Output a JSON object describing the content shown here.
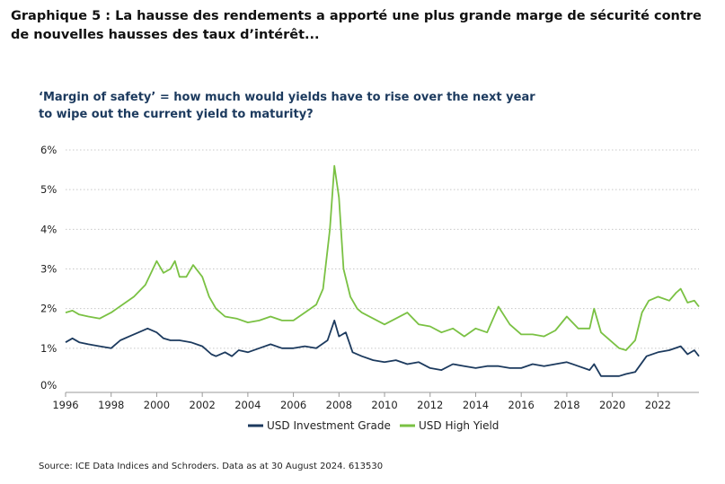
{
  "heading": "Graphique 5 : La hausse des rendements a apporté une plus grande marge de sécurité contre de nouvelles hausses des taux d’intérêt...",
  "source": "Source: ICE Data Indices and Schroders. Data as at 30 August 2024. 613530",
  "chart_data": {
    "type": "line",
    "title": "‘Margin of safety’ = how much would yields have to rise over the next year to wipe out the current yield to maturity?",
    "title_lines": [
      "‘Margin of safety’ = how much would yields have to rise over the next year",
      "to wipe out the current yield to maturity?"
    ],
    "xlabel": "",
    "ylabel": "",
    "xlim": [
      1996,
      2023.8
    ],
    "ylim": [
      0,
      6
    ],
    "x_ticks": [
      1996,
      1998,
      2000,
      2002,
      2004,
      2006,
      2008,
      2010,
      2012,
      2014,
      2016,
      2018,
      2020,
      2022
    ],
    "x_tick_labels": [
      "1996",
      "1998",
      "2000",
      "2002",
      "2004",
      "2006",
      "2008",
      "2010",
      "2012",
      "2014",
      "2016",
      "2018",
      "2020",
      "2022"
    ],
    "y_ticks": [
      0,
      1,
      2,
      3,
      4,
      5,
      6
    ],
    "y_tick_labels": [
      "0%",
      "1%",
      "2%",
      "3%",
      "4%",
      "5%",
      "6%"
    ],
    "grid": "horizontal dotted",
    "legend_position": "bottom-center",
    "series": [
      {
        "name": "USD Investment Grade",
        "color": "#1c3a5e",
        "x": [
          1996,
          1996.3,
          1996.6,
          1997,
          1997.5,
          1998,
          1998.4,
          1998.8,
          1999.2,
          1999.6,
          2000,
          2000.3,
          2000.6,
          2001,
          2001.5,
          2002,
          2002.4,
          2002.6,
          2003,
          2003.3,
          2003.6,
          2004,
          2004.5,
          2005,
          2005.5,
          2006,
          2006.5,
          2007,
          2007.5,
          2007.8,
          2008,
          2008.3,
          2008.6,
          2009,
          2009.5,
          2010,
          2010.5,
          2011,
          2011.5,
          2012,
          2012.5,
          2013,
          2013.5,
          2014,
          2014.5,
          2015,
          2015.5,
          2016,
          2016.5,
          2017,
          2017.5,
          2018,
          2018.5,
          2019,
          2019.2,
          2019.5,
          2020,
          2020.3,
          2020.6,
          2021,
          2021.5,
          2022,
          2022.5,
          2023,
          2023.3,
          2023.6,
          2023.8
        ],
        "values": [
          1.15,
          1.25,
          1.15,
          1.1,
          1.05,
          1.0,
          1.2,
          1.3,
          1.4,
          1.5,
          1.4,
          1.25,
          1.2,
          1.2,
          1.15,
          1.05,
          0.85,
          0.8,
          0.9,
          0.8,
          0.95,
          0.9,
          1.0,
          1.1,
          1.0,
          1.0,
          1.05,
          1.0,
          1.2,
          1.7,
          1.3,
          1.4,
          0.9,
          0.8,
          0.7,
          0.65,
          0.7,
          0.6,
          0.65,
          0.5,
          0.45,
          0.6,
          0.55,
          0.5,
          0.55,
          0.55,
          0.5,
          0.5,
          0.6,
          0.55,
          0.6,
          0.65,
          0.55,
          0.45,
          0.6,
          0.3,
          0.3,
          0.3,
          0.35,
          0.4,
          0.8,
          0.9,
          0.95,
          1.05,
          0.85,
          0.95,
          0.8
        ]
      },
      {
        "name": "USD High Yield",
        "color": "#7ac143",
        "x": [
          1996,
          1996.3,
          1996.6,
          1997,
          1997.5,
          1998,
          1998.5,
          1999,
          1999.5,
          2000,
          2000.3,
          2000.6,
          2000.8,
          2001,
          2001.3,
          2001.6,
          2002,
          2002.3,
          2002.6,
          2003,
          2003.5,
          2004,
          2004.5,
          2005,
          2005.5,
          2006,
          2006.5,
          2007,
          2007.3,
          2007.6,
          2007.8,
          2008,
          2008.2,
          2008.5,
          2008.8,
          2009,
          2009.5,
          2010,
          2010.5,
          2011,
          2011.5,
          2012,
          2012.5,
          2013,
          2013.5,
          2014,
          2014.5,
          2015,
          2015.5,
          2016,
          2016.5,
          2017,
          2017.5,
          2018,
          2018.5,
          2019,
          2019.2,
          2019.5,
          2020,
          2020.3,
          2020.6,
          2021,
          2021.3,
          2021.6,
          2022,
          2022.5,
          2022.8,
          2023,
          2023.3,
          2023.6,
          2023.8
        ],
        "values": [
          1.9,
          1.95,
          1.85,
          1.8,
          1.75,
          1.9,
          2.1,
          2.3,
          2.6,
          3.2,
          2.9,
          3.0,
          3.2,
          2.8,
          2.8,
          3.1,
          2.8,
          2.3,
          2.0,
          1.8,
          1.75,
          1.65,
          1.7,
          1.8,
          1.7,
          1.7,
          1.9,
          2.1,
          2.5,
          4.0,
          5.6,
          4.8,
          3.0,
          2.3,
          2.0,
          1.9,
          1.75,
          1.6,
          1.75,
          1.9,
          1.6,
          1.55,
          1.4,
          1.5,
          1.3,
          1.5,
          1.4,
          2.05,
          1.6,
          1.35,
          1.35,
          1.3,
          1.45,
          1.8,
          1.5,
          1.5,
          2.0,
          1.4,
          1.15,
          1.0,
          0.95,
          1.2,
          1.9,
          2.2,
          2.3,
          2.2,
          2.4,
          2.5,
          2.15,
          2.2,
          2.05
        ]
      }
    ]
  }
}
